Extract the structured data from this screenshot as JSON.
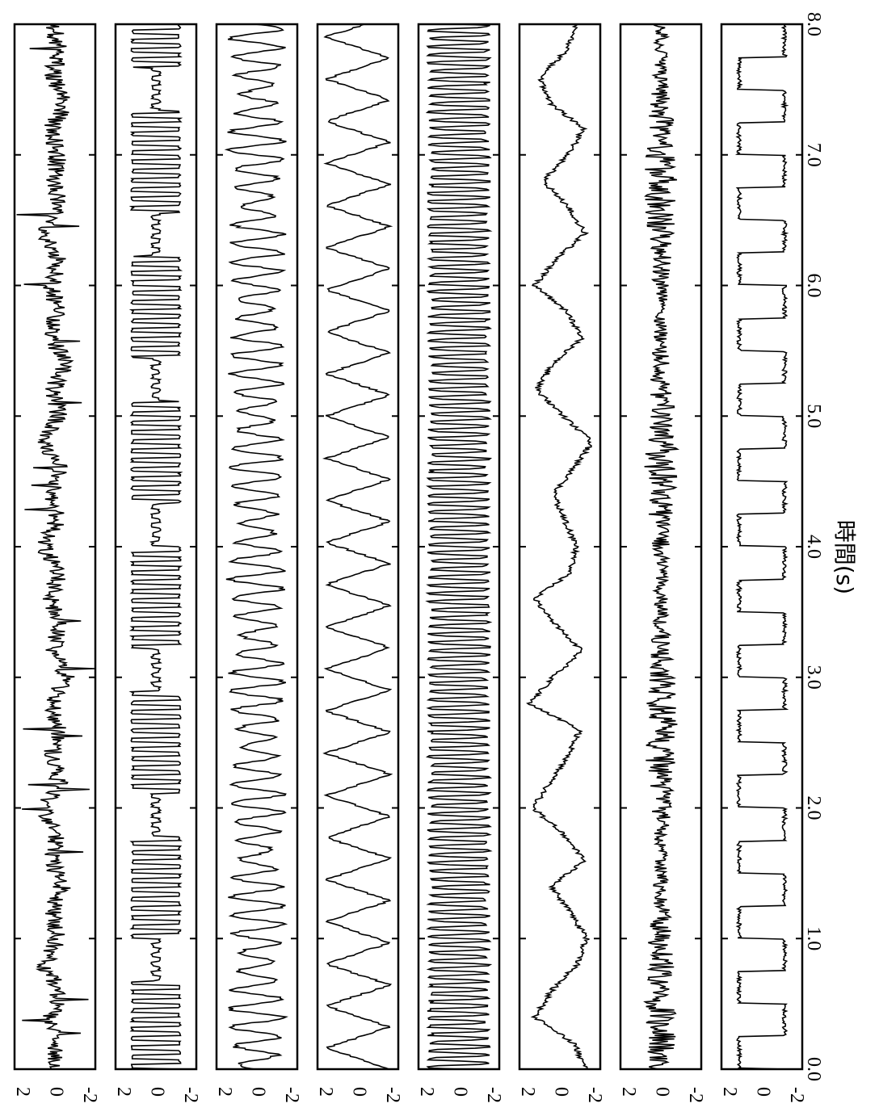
{
  "chart_data": {
    "type": "line",
    "orientation": "rotated-90",
    "xlabel": "時間(s)",
    "xlim": [
      0.0,
      8.0
    ],
    "x_ticks": [
      "0.0",
      "1.0",
      "2.0",
      "3.0",
      "4.0",
      "5.0",
      "6.0",
      "7.0",
      "8.0"
    ],
    "y_ticks": [
      "2",
      "0",
      "-2"
    ],
    "ylim": [
      -2.4,
      2.4
    ],
    "grid": "x-ticks only",
    "legend": "none",
    "panels": [
      {
        "kind": "impulsive",
        "x": [
          0.0,
          0.2,
          0.4,
          0.6,
          0.8,
          1.0,
          1.2,
          1.4,
          1.6,
          1.8,
          2.0,
          2.2,
          2.4,
          2.6,
          2.8,
          3.0,
          3.2,
          3.4,
          3.6,
          3.8,
          4.0,
          4.2,
          4.4,
          4.6,
          4.8,
          5.0,
          5.2,
          5.4,
          5.6,
          5.8,
          6.0,
          6.2,
          6.4,
          6.6,
          6.8,
          7.0,
          7.2,
          7.4,
          7.6,
          7.8,
          8.0
        ],
        "values": [
          0.3,
          -0.4,
          0.5,
          -0.6,
          1.8,
          -0.5,
          0.4,
          -1.2,
          0.6,
          -0.3,
          1.9,
          -0.7,
          0.5,
          -0.8,
          0.6,
          -1.9,
          0.4,
          -0.5,
          0.8,
          -0.6,
          1.9,
          -0.4,
          0.5,
          -0.9,
          1.7,
          -0.6,
          0.4,
          -1.8,
          0.7,
          -0.5,
          0.5,
          -0.4,
          1.9,
          -0.6,
          0.3,
          -0.5,
          0.6,
          -1.7,
          0.4,
          -0.6,
          0.3
        ]
      },
      {
        "kind": "square-bursts",
        "freq_hz": 14,
        "amplitude": 1.4
      },
      {
        "kind": "modulated-oscillation",
        "freq_hz": 7,
        "amplitude": 1.6
      },
      {
        "kind": "triangle",
        "freq_hz": 3.1,
        "amplitude": 1.9
      },
      {
        "kind": "fast-oscillation",
        "freq_hz": 16,
        "amplitude": 1.7
      },
      {
        "kind": "slow-wave",
        "x": [
          0.0,
          0.2,
          0.4,
          0.6,
          0.8,
          1.0,
          1.2,
          1.4,
          1.6,
          1.8,
          2.0,
          2.2,
          2.4,
          2.6,
          2.8,
          3.0,
          3.2,
          3.4,
          3.6,
          3.8,
          4.0,
          4.2,
          4.4,
          4.6,
          4.8,
          5.0,
          5.2,
          5.4,
          5.6,
          5.8,
          6.0,
          6.2,
          6.4,
          6.6,
          6.8,
          7.0,
          7.2,
          7.4,
          7.6,
          7.8,
          8.0
        ],
        "values": [
          -1.6,
          -0.8,
          1.5,
          0.5,
          -1.0,
          -1.6,
          -0.6,
          0.5,
          -1.5,
          -0.2,
          1.6,
          0.6,
          -0.5,
          -1.2,
          1.8,
          0.4,
          -1.3,
          0.2,
          1.5,
          -0.6,
          -1.0,
          -0.3,
          0.4,
          -0.8,
          -1.9,
          -0.2,
          1.4,
          0.4,
          -1.3,
          -0.4,
          1.5,
          0.2,
          -1.5,
          -0.5,
          1.0,
          -0.5,
          -1.4,
          0.6,
          1.2,
          -0.4,
          -1.0
        ]
      },
      {
        "kind": "noise",
        "amplitude": 1.0
      },
      {
        "kind": "square",
        "freq_hz": 2,
        "amplitude": 1.5
      }
    ]
  }
}
